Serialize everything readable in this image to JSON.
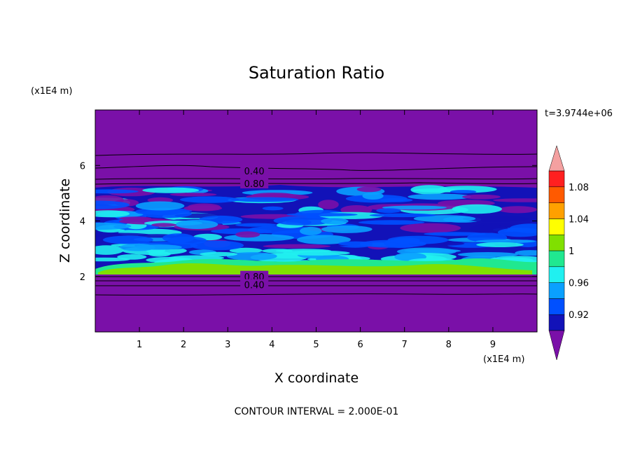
{
  "chart_data": {
    "type": "heatmap",
    "title": "Saturation Ratio",
    "xlabel": "X coordinate",
    "ylabel": "Z coordinate",
    "x_unit": "(x1E4 m)",
    "y_unit": "(x1E4 m)",
    "time_label": "t=3.9744e+06",
    "footer": "CONTOUR INTERVAL = 2.000E-01",
    "xlim": [
      0,
      10
    ],
    "ylim": [
      0,
      8
    ],
    "x_ticks": [
      1,
      2,
      3,
      4,
      5,
      6,
      7,
      8,
      9
    ],
    "y_ticks": [
      2,
      4,
      6
    ],
    "contour_labels": [
      {
        "text": "0.40",
        "x": 3.6,
        "y": 5.8
      },
      {
        "text": "0.80",
        "x": 3.6,
        "y": 5.35
      },
      {
        "text": "0.80",
        "x": 3.6,
        "y": 2.0
      },
      {
        "text": "0.40",
        "x": 3.6,
        "y": 1.7
      }
    ],
    "colorbar": {
      "levels": [
        0.9,
        0.92,
        0.94,
        0.96,
        0.98,
        1.0,
        1.02,
        1.04,
        1.06,
        1.08,
        1.1
      ],
      "colors": [
        "#7a10a8",
        "#1212b8",
        "#0050ff",
        "#0aa0ff",
        "#20f0f0",
        "#20e890",
        "#80e000",
        "#ffff00",
        "#ffa000",
        "#ff5a00",
        "#ff2020"
      ],
      "under_color": "#7a10a8",
      "over_color": "#f4a0a0",
      "tick_labels": [
        "0.92",
        "0.96",
        "1",
        "1.04",
        "1.08"
      ]
    }
  }
}
